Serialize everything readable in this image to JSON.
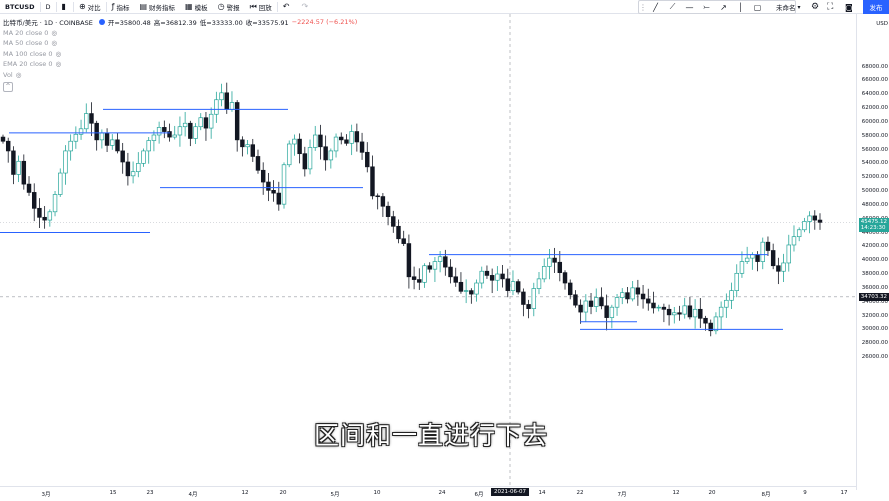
{
  "toolbar": {
    "symbol": "BTCUSD",
    "interval": "D",
    "compare_label": "对比",
    "indicators_label": "指标",
    "financials_label": "财务指标",
    "templates_label": "模板",
    "alert_label": "警报",
    "replay_label": "回放",
    "unnamed_label": "未命名",
    "publish_label": "发布"
  },
  "legend": {
    "title": "比特币/美元 · 1D · COINBASE",
    "open": "开=35800.48",
    "high": "高=36812.39",
    "low": "低=33333.00",
    "close": "收=33575.91",
    "change": "−2224.57 (−6.21%)",
    "indicators": [
      "MA 20 close 0",
      "MA 50 close 0",
      "MA 100 close 0",
      "EMA 20 close 0",
      "Vol"
    ],
    "collapse_glyph": "^"
  },
  "axis": {
    "currency": "USD",
    "price_ticks": [
      "68000.00",
      "66000.00",
      "64000.00",
      "62000.00",
      "60000.00",
      "58000.00",
      "56000.00",
      "54000.00",
      "52000.00",
      "50000.00",
      "48000.00",
      "46000.00",
      "44000.00",
      "42000.00",
      "40000.00",
      "38000.00",
      "36000.00",
      "34000.00",
      "32000.00",
      "30000.00",
      "28000.00",
      "26000.00"
    ],
    "last_price": "45475.12",
    "last_countdown": "14:23:30",
    "crosshair_price": "34703.32",
    "time_ticks": [
      "3月",
      "15",
      "23",
      "4月",
      "12",
      "20",
      "5月",
      "10",
      "24",
      "6月",
      "14",
      "22",
      "7月",
      "12",
      "20",
      "8月",
      "9",
      "17"
    ],
    "crosshair_date": "2021-06-07"
  },
  "subtitle": "区间和一直进行下去",
  "colors": {
    "up": "#26a69a",
    "down": "#131722",
    "level_line": "#2962ff",
    "accent": "#2962ff"
  },
  "chart_data": {
    "type": "candlestick",
    "price_range": [
      25500,
      69000
    ],
    "horizontal_levels": [
      58400,
      61800,
      50500,
      44000,
      40800,
      31100,
      30000
    ],
    "close_series": [
      57200,
      55800,
      52400,
      54300,
      51000,
      49800,
      47500,
      46200,
      45800,
      47000,
      49500,
      52600,
      55800,
      57200,
      58200,
      59000,
      61200,
      59800,
      57400,
      58400,
      56600,
      57400,
      55800,
      54200,
      52200,
      52800,
      54000,
      55800,
      57300,
      58100,
      59200,
      58600,
      57800,
      58100,
      59300,
      59800,
      57600,
      59300,
      60600,
      59100,
      61100,
      63200,
      64200,
      61800,
      62800,
      57400,
      56400,
      56700,
      55000,
      53000,
      51300,
      50100,
      49700,
      48100,
      53800,
      56800,
      57500,
      55400,
      53200,
      56300,
      58100,
      56400,
      54500,
      55800,
      57800,
      57400,
      56900,
      58600,
      57100,
      55600,
      53500,
      49300,
      49200,
      47800,
      46300,
      44900,
      43100,
      42400,
      37600,
      37200,
      36800,
      39200,
      38700,
      39800,
      40500,
      39000,
      37600,
      36800,
      35500,
      35600,
      35100,
      36700,
      38400,
      37800,
      37100,
      38000,
      37300,
      35600,
      36900,
      35400,
      33600,
      33000,
      35900,
      37300,
      39100,
      40300,
      39700,
      38200,
      36700,
      35000,
      33500,
      32500,
      34100,
      33300,
      34600,
      33400,
      31700,
      33200,
      34600,
      35300,
      34400,
      36000,
      35100,
      34400,
      33800,
      33100,
      33200,
      32900,
      32100,
      32400,
      32200,
      33400,
      31800,
      32900,
      31600,
      30900,
      29800,
      31800,
      33200,
      34200,
      35600,
      38100,
      39800,
      40300,
      40800,
      39800,
      42600,
      41400,
      39200,
      38400,
      39600,
      42200,
      43400,
      44400,
      45600,
      46400,
      45800,
      45475
    ]
  }
}
